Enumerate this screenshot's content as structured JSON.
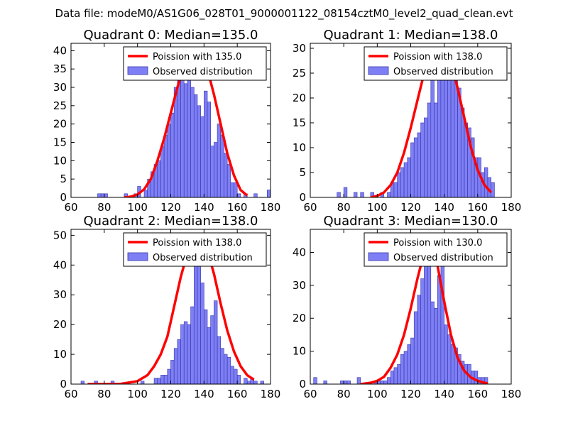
{
  "suptitle": "Data file: modeM0/AS1G06_028T01_9000001122_08154cztM0_level2_quad_clean.evt",
  "colors": {
    "bars_fill": "#7f7ff5",
    "bars_edge": "#3333aa",
    "poisson": "#ff0000",
    "frame": "#000000"
  },
  "chart_data": [
    {
      "type": "bar",
      "title": "Quadrant 0: Median=135.0",
      "xlim": [
        60,
        180
      ],
      "ylim": [
        0,
        42
      ],
      "xticks": [
        60,
        80,
        100,
        120,
        140,
        160,
        180
      ],
      "yticks": [
        0,
        5,
        10,
        15,
        20,
        25,
        30,
        35,
        40
      ],
      "legend": {
        "location": "top-right",
        "line_label": "Poission with 135.0",
        "bar_label": "Observed distribution"
      },
      "bin_width": 2,
      "bins": [
        [
          76,
          1
        ],
        [
          78,
          1
        ],
        [
          80,
          1
        ],
        [
          92,
          1
        ],
        [
          98,
          1
        ],
        [
          100,
          3
        ],
        [
          104,
          2
        ],
        [
          106,
          5
        ],
        [
          108,
          7
        ],
        [
          110,
          9
        ],
        [
          112,
          10
        ],
        [
          114,
          14
        ],
        [
          116,
          17
        ],
        [
          118,
          20
        ],
        [
          120,
          23
        ],
        [
          122,
          30
        ],
        [
          124,
          36
        ],
        [
          126,
          35
        ],
        [
          128,
          31
        ],
        [
          130,
          40
        ],
        [
          132,
          30
        ],
        [
          134,
          28
        ],
        [
          136,
          25
        ],
        [
          138,
          22
        ],
        [
          140,
          29
        ],
        [
          142,
          26
        ],
        [
          144,
          14
        ],
        [
          146,
          15
        ],
        [
          148,
          20
        ],
        [
          150,
          17
        ],
        [
          152,
          12
        ],
        [
          154,
          9
        ],
        [
          156,
          4
        ],
        [
          158,
          4
        ],
        [
          160,
          1
        ],
        [
          164,
          1
        ],
        [
          170,
          1
        ],
        [
          178,
          2
        ]
      ],
      "poisson_curve": {
        "x": [
          92,
          96,
          100,
          104,
          108,
          112,
          116,
          120,
          124,
          128,
          132,
          135,
          138,
          142,
          146,
          150,
          154,
          158,
          162,
          166
        ],
        "y": [
          0,
          0.2,
          0.8,
          2.2,
          5,
          10,
          16,
          23,
          30,
          36,
          39,
          40,
          39,
          35,
          28,
          20,
          12,
          6,
          2,
          0.5
        ]
      }
    },
    {
      "type": "bar",
      "title": "Quadrant 1: Median=138.0",
      "xlim": [
        60,
        180
      ],
      "ylim": [
        0,
        31
      ],
      "xticks": [
        60,
        80,
        100,
        120,
        140,
        160,
        180
      ],
      "yticks": [
        0,
        5,
        10,
        15,
        20,
        25,
        30
      ],
      "legend": {
        "location": "top-right",
        "line_label": "Poission with 138.0",
        "bar_label": "Observed distribution"
      },
      "bin_width": 2,
      "bins": [
        [
          76,
          1
        ],
        [
          80,
          2
        ],
        [
          86,
          1
        ],
        [
          90,
          1
        ],
        [
          96,
          1
        ],
        [
          102,
          1
        ],
        [
          106,
          1
        ],
        [
          108,
          3
        ],
        [
          110,
          3
        ],
        [
          112,
          5
        ],
        [
          114,
          6
        ],
        [
          116,
          7
        ],
        [
          118,
          8
        ],
        [
          120,
          11
        ],
        [
          122,
          12
        ],
        [
          124,
          13
        ],
        [
          126,
          15
        ],
        [
          128,
          16
        ],
        [
          130,
          19
        ],
        [
          132,
          28
        ],
        [
          134,
          19
        ],
        [
          136,
          28
        ],
        [
          138,
          28
        ],
        [
          140,
          30
        ],
        [
          142,
          30
        ],
        [
          144,
          25
        ],
        [
          146,
          29
        ],
        [
          148,
          22
        ],
        [
          150,
          18
        ],
        [
          152,
          15
        ],
        [
          154,
          14
        ],
        [
          156,
          12
        ],
        [
          158,
          8
        ],
        [
          160,
          8
        ],
        [
          162,
          5
        ],
        [
          164,
          6
        ],
        [
          166,
          4
        ],
        [
          168,
          3
        ]
      ],
      "poisson_curve": {
        "x": [
          96,
          100,
          104,
          108,
          112,
          116,
          120,
          124,
          128,
          132,
          136,
          138,
          140,
          144,
          148,
          152,
          156,
          160,
          164,
          168
        ],
        "y": [
          0,
          0.3,
          1,
          2.5,
          5,
          9,
          14,
          19.5,
          25,
          28.5,
          29.8,
          30,
          29.8,
          27.5,
          22,
          16,
          10,
          5.5,
          2.5,
          1
        ]
      }
    },
    {
      "type": "bar",
      "title": "Quadrant 2: Median=138.0",
      "xlim": [
        60,
        180
      ],
      "ylim": [
        0,
        52
      ],
      "xticks": [
        60,
        80,
        100,
        120,
        140,
        160,
        180
      ],
      "yticks": [
        0,
        10,
        20,
        30,
        40,
        50
      ],
      "legend": {
        "location": "top-right",
        "line_label": "Poission with 138.0",
        "bar_label": "Observed distribution"
      },
      "bin_width": 2,
      "bins": [
        [
          66,
          1
        ],
        [
          74,
          1
        ],
        [
          84,
          1
        ],
        [
          102,
          1
        ],
        [
          110,
          2
        ],
        [
          112,
          2
        ],
        [
          114,
          3
        ],
        [
          116,
          3
        ],
        [
          118,
          5
        ],
        [
          120,
          8
        ],
        [
          122,
          12
        ],
        [
          124,
          15
        ],
        [
          126,
          20
        ],
        [
          128,
          21
        ],
        [
          130,
          20
        ],
        [
          132,
          26
        ],
        [
          134,
          48
        ],
        [
          136,
          42
        ],
        [
          138,
          34
        ],
        [
          140,
          25
        ],
        [
          142,
          19
        ],
        [
          144,
          23
        ],
        [
          146,
          28
        ],
        [
          148,
          16
        ],
        [
          150,
          12
        ],
        [
          152,
          10
        ],
        [
          154,
          9
        ],
        [
          156,
          6
        ],
        [
          158,
          5
        ],
        [
          160,
          3
        ],
        [
          164,
          2
        ],
        [
          166,
          1
        ],
        [
          168,
          2
        ],
        [
          170,
          1
        ],
        [
          174,
          1
        ]
      ],
      "poisson_curve": {
        "x": [
          70,
          80,
          90,
          100,
          106,
          110,
          114,
          118,
          122,
          126,
          130,
          134,
          138,
          142,
          146,
          150,
          154,
          158,
          162,
          166,
          170
        ],
        "y": [
          0,
          0,
          0.1,
          1,
          3,
          6,
          10,
          16,
          26,
          36,
          44,
          48,
          49,
          45,
          37,
          27,
          18,
          11,
          6,
          3,
          1.5
        ]
      }
    },
    {
      "type": "bar",
      "title": "Quadrant 3: Median=130.0",
      "xlim": [
        60,
        180
      ],
      "ylim": [
        0,
        47
      ],
      "xticks": [
        60,
        80,
        100,
        120,
        140,
        160,
        180
      ],
      "yticks": [
        0,
        10,
        20,
        30,
        40
      ],
      "legend": {
        "location": "top-right",
        "line_label": "Poission with 130.0",
        "bar_label": "Observed distribution"
      },
      "bin_width": 2,
      "bins": [
        [
          62,
          2
        ],
        [
          68,
          1
        ],
        [
          78,
          1
        ],
        [
          80,
          1
        ],
        [
          82,
          1
        ],
        [
          88,
          2
        ],
        [
          98,
          1
        ],
        [
          100,
          1
        ],
        [
          102,
          1
        ],
        [
          104,
          1
        ],
        [
          106,
          2
        ],
        [
          108,
          4
        ],
        [
          110,
          5
        ],
        [
          112,
          6
        ],
        [
          114,
          9
        ],
        [
          116,
          10
        ],
        [
          118,
          12
        ],
        [
          120,
          14
        ],
        [
          122,
          22
        ],
        [
          124,
          27
        ],
        [
          126,
          32
        ],
        [
          128,
          42
        ],
        [
          130,
          45
        ],
        [
          132,
          25
        ],
        [
          134,
          23
        ],
        [
          136,
          33
        ],
        [
          138,
          38
        ],
        [
          140,
          18
        ],
        [
          142,
          15
        ],
        [
          144,
          12
        ],
        [
          146,
          11
        ],
        [
          148,
          9
        ],
        [
          150,
          7
        ],
        [
          152,
          6
        ],
        [
          154,
          6
        ],
        [
          156,
          4
        ],
        [
          158,
          4
        ],
        [
          160,
          2
        ],
        [
          162,
          2
        ],
        [
          164,
          2
        ]
      ],
      "poisson_curve": {
        "x": [
          90,
          96,
          100,
          104,
          108,
          112,
          116,
          120,
          124,
          128,
          130,
          132,
          136,
          140,
          144,
          148,
          152,
          156,
          160,
          164,
          166
        ],
        "y": [
          0,
          0.4,
          1,
          2.2,
          5,
          9,
          15,
          23,
          32,
          40,
          43,
          42,
          36,
          25,
          15,
          8,
          4,
          2,
          1,
          0.4,
          0.2
        ]
      }
    }
  ]
}
